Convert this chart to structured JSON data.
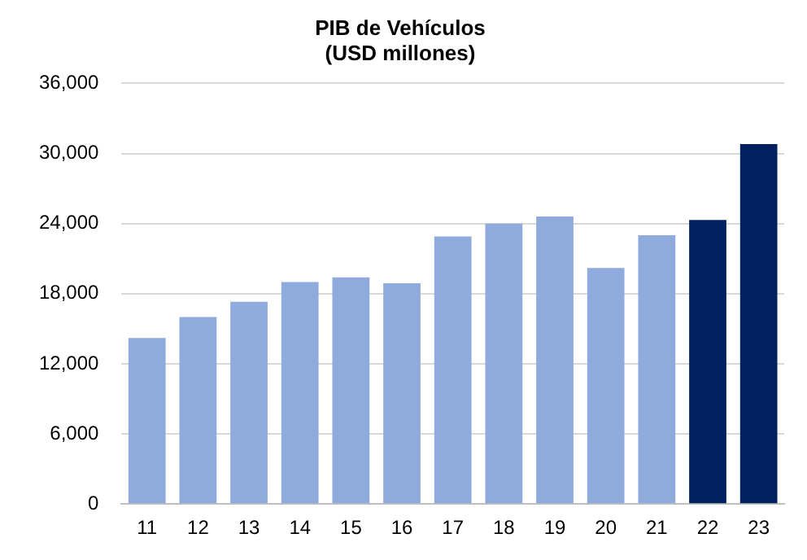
{
  "chart_data": {
    "type": "bar",
    "title": "PIB de Vehículos\n(USD millones)",
    "categories": [
      "11",
      "12",
      "13",
      "14",
      "15",
      "16",
      "17",
      "18",
      "19",
      "20",
      "21",
      "22",
      "23"
    ],
    "values": [
      14200,
      16000,
      17300,
      19000,
      19400,
      18900,
      22900,
      24000,
      24600,
      20200,
      23000,
      24300,
      30800
    ],
    "colors": [
      "#8faadc",
      "#8faadc",
      "#8faadc",
      "#8faadc",
      "#8faadc",
      "#8faadc",
      "#8faadc",
      "#8faadc",
      "#8faadc",
      "#8faadc",
      "#8faadc",
      "#002060",
      "#002060"
    ],
    "ylim": [
      0,
      36000
    ],
    "yticks": [
      0,
      {
        "value": 6000,
        "label": "6,000"
      },
      {
        "value": 12000,
        "label": "12,000"
      },
      {
        "value": 18000,
        "label": "18,000"
      },
      {
        "value": 24000,
        "label": "24,000"
      },
      {
        "value": 30000,
        "label": "30,000"
      },
      {
        "value": 36000,
        "label": "36,000"
      }
    ],
    "grid": "y",
    "legend": false
  }
}
